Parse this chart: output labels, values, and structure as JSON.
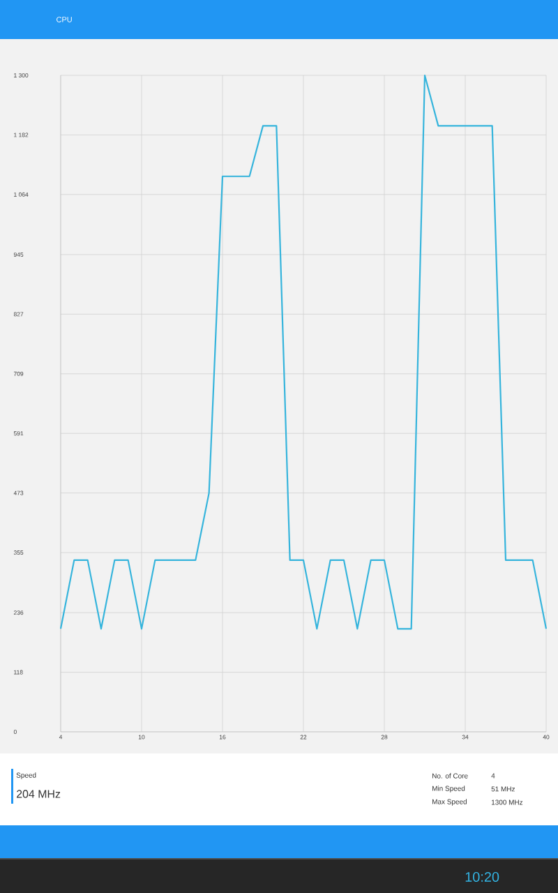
{
  "chart_data": {
    "type": "line",
    "title": "CPU",
    "x": [
      4,
      5,
      6,
      7,
      8,
      9,
      10,
      11,
      12,
      13,
      14,
      15,
      16,
      17,
      18,
      19,
      20,
      21,
      22,
      23,
      24,
      25,
      26,
      27,
      28,
      29,
      30,
      31,
      32,
      33,
      34,
      35,
      36,
      37,
      38,
      39,
      40
    ],
    "values": [
      204,
      340,
      340,
      204,
      340,
      340,
      204,
      340,
      340,
      340,
      340,
      473,
      1100,
      1100,
      1100,
      1200,
      1200,
      340,
      340,
      204,
      340,
      340,
      204,
      340,
      340,
      204,
      204,
      1300,
      1200,
      1200,
      1200,
      1200,
      1200,
      340,
      340,
      340,
      204
    ],
    "color": "#35b4dc",
    "xlim": [
      4,
      40
    ],
    "ylim": [
      0,
      1300
    ],
    "xticks": [
      4,
      10,
      16,
      22,
      28,
      34,
      40
    ],
    "yticks": [
      0,
      118,
      236,
      355,
      473,
      591,
      709,
      827,
      945,
      {
        "value": 1064,
        "label": "1 064"
      },
      {
        "value": 1182,
        "label": "1 182"
      },
      {
        "value": 1300,
        "label": "1 300"
      }
    ],
    "grid": true,
    "annotations": [
      "Speed",
      "204 MHz",
      "No. of Core",
      "4",
      "Min Speed",
      "51 MHz",
      "Max Speed",
      "1300 MHz",
      "10:20"
    ]
  }
}
